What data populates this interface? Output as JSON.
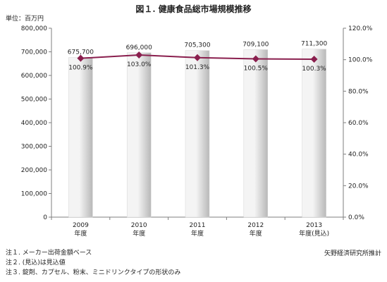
{
  "header": {
    "title": "図１. 健康食品総市場規模推移",
    "unit_label": "単位：百万円"
  },
  "chart_data": {
    "type": "bar",
    "categories": [
      "2009",
      "2010",
      "2011",
      "2012",
      "2013"
    ],
    "category_sublabels": [
      "年度",
      "年度",
      "年度",
      "年度",
      "年度(見込)"
    ],
    "series": [
      {
        "values": [
          675700,
          696000,
          705300,
          709100,
          711300
        ],
        "axis": "left",
        "type": "bar"
      },
      {
        "values": [
          100.9,
          103.0,
          101.3,
          100.5,
          100.3
        ],
        "axis": "right",
        "type": "line"
      }
    ],
    "bar_labels": [
      "675,700",
      "696,000",
      "705,300",
      "709,100",
      "711,300"
    ],
    "line_labels": [
      "100.9%",
      "103.0%",
      "101.3%",
      "100.5%",
      "100.3%"
    ],
    "y_left": {
      "min": 0,
      "max": 800000,
      "step": 100000,
      "ticks": [
        "0",
        "100,000",
        "200,000",
        "300,000",
        "400,000",
        "500,000",
        "600,000",
        "700,000",
        "800,000"
      ]
    },
    "y_right": {
      "min": 0,
      "max": 120,
      "step": 20,
      "ticks": [
        "0.0%",
        "20.0%",
        "40.0%",
        "60.0%",
        "80.0%",
        "100.0%",
        "120.0%"
      ]
    },
    "grid": false,
    "colors": {
      "bar_light": "#f4f4f4",
      "bar_dark": "#b8b8b8",
      "line": "#8a1f4e",
      "axis": "#7f7f7f"
    }
  },
  "notes": [
    "注１. メーカー出荷金額ベース",
    "注２. (見込)は見込値",
    "注３. 錠剤、カプセル、粉末、ミニドリンクタイプの形状のみ"
  ],
  "source": "矢野経済研究所推計"
}
